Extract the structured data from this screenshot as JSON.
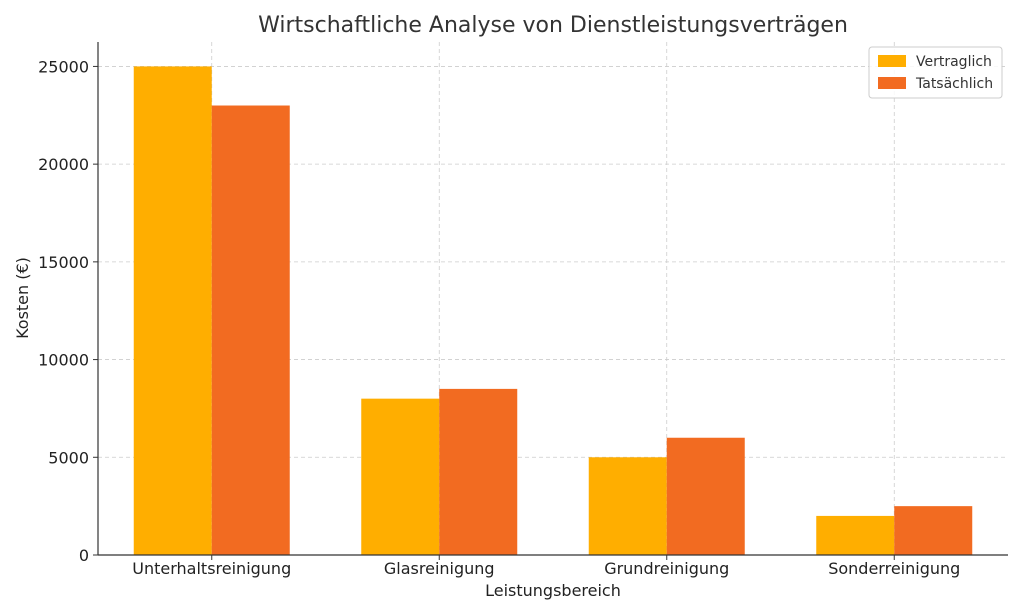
{
  "chart_data": {
    "type": "bar",
    "title": "Wirtschaftliche Analyse von Dienstleistungsverträgen",
    "xlabel": "Leistungsbereich",
    "ylabel": "Kosten (€)",
    "categories": [
      "Unterhaltsreinigung",
      "Glasreinigung",
      "Grundreinigung",
      "Sonderreinigung"
    ],
    "series": [
      {
        "name": "Vertraglich",
        "values": [
          25000,
          8000,
          5000,
          2000
        ],
        "color": "#FFAE00"
      },
      {
        "name": "Tatsächlich",
        "values": [
          23000,
          8500,
          6000,
          2500
        ],
        "color": "#F26B21"
      }
    ],
    "ylim": [
      0,
      26250
    ],
    "yticks": [
      0,
      5000,
      10000,
      15000,
      20000,
      25000
    ],
    "grid": true,
    "legend_position": "top-right"
  }
}
